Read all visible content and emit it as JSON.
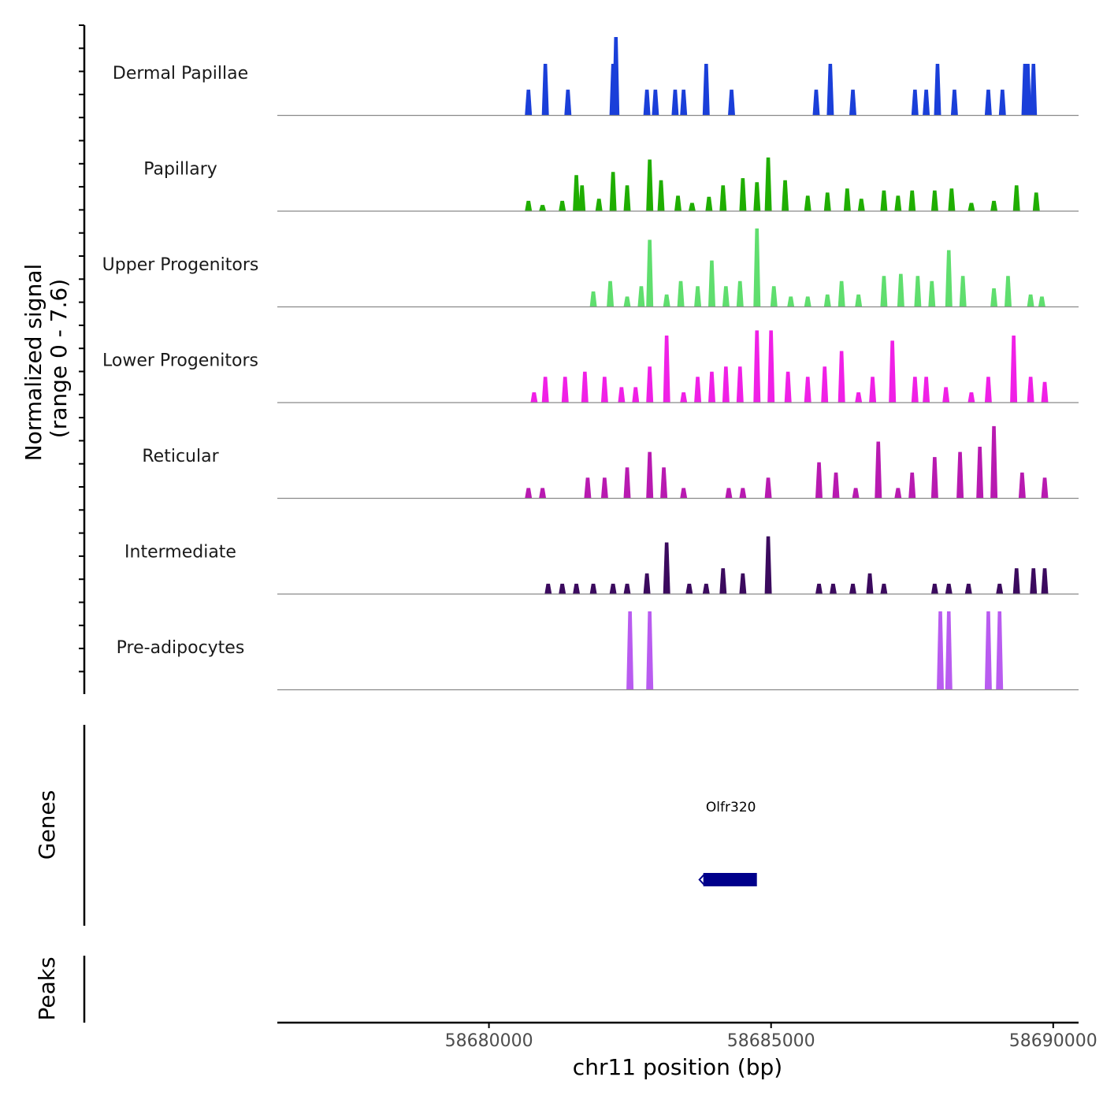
{
  "chart_data": {
    "type": "area",
    "title": "",
    "chromosome": "chr11",
    "xlabel": "chr11 position (bp)",
    "xlim": [
      58676250,
      58690450
    ],
    "xticks": [
      58680000,
      58685000,
      58690000
    ],
    "tick_labels": [
      "58680000",
      "58685000",
      "58690000"
    ],
    "coverage_ylabel_line1": "Normalized signal",
    "coverage_ylabel_line2": "(range 0 - 7.6)",
    "ylim": [
      0,
      7.6
    ],
    "genes_label": "Genes",
    "peaks_label": "Peaks",
    "genes": [
      {
        "name": "Olfr320",
        "start": 58683800,
        "end": 58684750,
        "strand": "-",
        "color": "#00008b"
      }
    ],
    "peaks": [],
    "series": [
      {
        "name": "Dermal Papillae",
        "color": "#1a3fd9",
        "points": [
          [
            58680700,
            2.5
          ],
          [
            58681000,
            5.0
          ],
          [
            58681400,
            2.5
          ],
          [
            58682200,
            5.0
          ],
          [
            58682250,
            7.6
          ],
          [
            58682800,
            2.5
          ],
          [
            58682950,
            2.5
          ],
          [
            58683300,
            2.5
          ],
          [
            58683450,
            2.5
          ],
          [
            58683850,
            5.0
          ],
          [
            58684300,
            2.5
          ],
          [
            58685800,
            2.5
          ],
          [
            58686050,
            5.0
          ],
          [
            58686450,
            2.5
          ],
          [
            58687550,
            2.5
          ],
          [
            58687750,
            2.5
          ],
          [
            58687950,
            5.0
          ],
          [
            58688250,
            2.5
          ],
          [
            58688850,
            2.5
          ],
          [
            58689100,
            2.5
          ],
          [
            58689500,
            5.0
          ],
          [
            58689550,
            5.0
          ],
          [
            58689650,
            5.0
          ]
        ]
      },
      {
        "name": "Papillary",
        "color": "#1fae00",
        "points": [
          [
            58680700,
            1.0
          ],
          [
            58680950,
            0.6
          ],
          [
            58681300,
            1.0
          ],
          [
            58681550,
            3.5
          ],
          [
            58681650,
            2.5
          ],
          [
            58681950,
            1.2
          ],
          [
            58682200,
            3.8
          ],
          [
            58682450,
            2.5
          ],
          [
            58682850,
            5.0
          ],
          [
            58683050,
            3.0
          ],
          [
            58683350,
            1.5
          ],
          [
            58683600,
            0.8
          ],
          [
            58683900,
            1.4
          ],
          [
            58684150,
            2.5
          ],
          [
            58684500,
            3.2
          ],
          [
            58684750,
            2.8
          ],
          [
            58684950,
            5.2
          ],
          [
            58685250,
            3.0
          ],
          [
            58685650,
            1.5
          ],
          [
            58686000,
            1.8
          ],
          [
            58686350,
            2.2
          ],
          [
            58686600,
            1.2
          ],
          [
            58687000,
            2.0
          ],
          [
            58687250,
            1.5
          ],
          [
            58687500,
            2.0
          ],
          [
            58687900,
            2.0
          ],
          [
            58688200,
            2.2
          ],
          [
            58688550,
            0.8
          ],
          [
            58688950,
            1.0
          ],
          [
            58689350,
            2.5
          ],
          [
            58689700,
            1.8
          ]
        ]
      },
      {
        "name": "Upper Progenitors",
        "color": "#5fde6e",
        "points": [
          [
            58681850,
            1.5
          ],
          [
            58682150,
            2.5
          ],
          [
            58682450,
            1.0
          ],
          [
            58682700,
            2.0
          ],
          [
            58682850,
            6.5
          ],
          [
            58683150,
            1.2
          ],
          [
            58683400,
            2.5
          ],
          [
            58683700,
            2.0
          ],
          [
            58683950,
            4.5
          ],
          [
            58684200,
            2.0
          ],
          [
            58684450,
            2.5
          ],
          [
            58684750,
            7.6
          ],
          [
            58685050,
            2.0
          ],
          [
            58685350,
            1.0
          ],
          [
            58685650,
            1.0
          ],
          [
            58686000,
            1.2
          ],
          [
            58686250,
            2.5
          ],
          [
            58686550,
            1.2
          ],
          [
            58687000,
            3.0
          ],
          [
            58687300,
            3.2
          ],
          [
            58687600,
            3.0
          ],
          [
            58687850,
            2.5
          ],
          [
            58688150,
            5.5
          ],
          [
            58688400,
            3.0
          ],
          [
            58688950,
            1.8
          ],
          [
            58689200,
            3.0
          ],
          [
            58689600,
            1.2
          ],
          [
            58689800,
            1.0
          ]
        ]
      },
      {
        "name": "Lower Progenitors",
        "color": "#f020e6",
        "points": [
          [
            58680800,
            1.0
          ],
          [
            58681000,
            2.5
          ],
          [
            58681350,
            2.5
          ],
          [
            58681700,
            3.0
          ],
          [
            58682050,
            2.5
          ],
          [
            58682350,
            1.5
          ],
          [
            58682600,
            1.5
          ],
          [
            58682850,
            3.5
          ],
          [
            58683150,
            6.5
          ],
          [
            58683450,
            1.0
          ],
          [
            58683700,
            2.5
          ],
          [
            58683950,
            3.0
          ],
          [
            58684200,
            3.5
          ],
          [
            58684450,
            3.5
          ],
          [
            58684750,
            7.0
          ],
          [
            58685000,
            7.0
          ],
          [
            58685300,
            3.0
          ],
          [
            58685650,
            2.5
          ],
          [
            58685950,
            3.5
          ],
          [
            58686250,
            5.0
          ],
          [
            58686550,
            1.0
          ],
          [
            58686800,
            2.5
          ],
          [
            58687150,
            6.0
          ],
          [
            58687550,
            2.5
          ],
          [
            58687750,
            2.5
          ],
          [
            58688100,
            1.5
          ],
          [
            58688550,
            1.0
          ],
          [
            58688850,
            2.5
          ],
          [
            58689300,
            6.5
          ],
          [
            58689600,
            2.5
          ],
          [
            58689850,
            2.0
          ]
        ]
      },
      {
        "name": "Reticular",
        "color": "#b81ab0",
        "points": [
          [
            58680700,
            1.0
          ],
          [
            58680950,
            1.0
          ],
          [
            58681750,
            2.0
          ],
          [
            58682050,
            2.0
          ],
          [
            58682450,
            3.0
          ],
          [
            58682850,
            4.5
          ],
          [
            58683100,
            3.0
          ],
          [
            58683450,
            1.0
          ],
          [
            58684250,
            1.0
          ],
          [
            58684500,
            1.0
          ],
          [
            58684950,
            2.0
          ],
          [
            58685850,
            3.5
          ],
          [
            58686150,
            2.5
          ],
          [
            58686500,
            1.0
          ],
          [
            58686900,
            5.5
          ],
          [
            58687250,
            1.0
          ],
          [
            58687500,
            2.5
          ],
          [
            58687900,
            4.0
          ],
          [
            58688350,
            4.5
          ],
          [
            58688700,
            5.0
          ],
          [
            58688950,
            7.0
          ],
          [
            58689450,
            2.5
          ],
          [
            58689850,
            2.0
          ]
        ]
      },
      {
        "name": "Intermediate",
        "color": "#3b0a5e",
        "points": [
          [
            58681050,
            1.0
          ],
          [
            58681300,
            1.0
          ],
          [
            58681550,
            1.0
          ],
          [
            58681850,
            1.0
          ],
          [
            58682200,
            1.0
          ],
          [
            58682450,
            1.0
          ],
          [
            58682800,
            2.0
          ],
          [
            58683150,
            5.0
          ],
          [
            58683550,
            1.0
          ],
          [
            58683850,
            1.0
          ],
          [
            58684150,
            2.5
          ],
          [
            58684500,
            2.0
          ],
          [
            58684950,
            5.6
          ],
          [
            58685850,
            1.0
          ],
          [
            58686100,
            1.0
          ],
          [
            58686450,
            1.0
          ],
          [
            58686750,
            2.0
          ],
          [
            58687000,
            1.0
          ],
          [
            58687900,
            1.0
          ],
          [
            58688150,
            1.0
          ],
          [
            58688500,
            1.0
          ],
          [
            58689050,
            1.0
          ],
          [
            58689350,
            2.5
          ],
          [
            58689650,
            2.5
          ],
          [
            58689850,
            2.5
          ]
        ]
      },
      {
        "name": "Pre-adipocytes",
        "color": "#b95cf0",
        "points": [
          [
            58682500,
            7.6
          ],
          [
            58682850,
            7.6
          ],
          [
            58688000,
            7.6
          ],
          [
            58688150,
            7.6
          ],
          [
            58688850,
            7.6
          ],
          [
            58689050,
            7.6
          ]
        ]
      }
    ]
  }
}
